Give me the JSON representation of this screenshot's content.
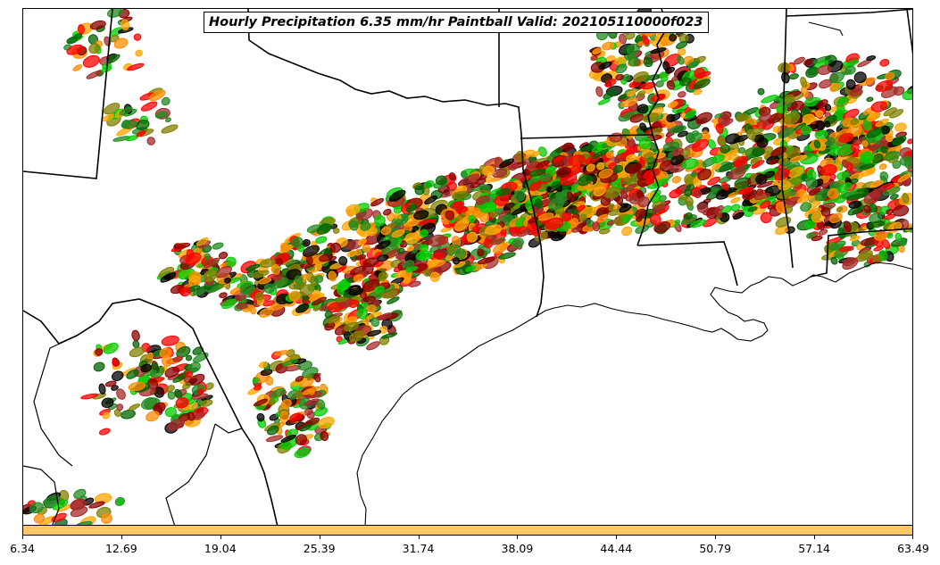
{
  "title": "Hourly Precipitation 6.35 mm/hr Paintball Valid: 202105110000f023",
  "colorbar": {
    "fill_color": "#ffc764",
    "ticks": [
      "6.34",
      "12.69",
      "19.04",
      "25.39",
      "31.74",
      "38.09",
      "44.44",
      "50.79",
      "57.14",
      "63.49"
    ]
  },
  "colors": {
    "member_colors": [
      "#ff0000",
      "#ff8c00",
      "#ffa500",
      "#00cc00",
      "#228b22",
      "#808000",
      "#8b0000",
      "#a52a2a",
      "#006400",
      "#000000"
    ],
    "boundary": "#000000",
    "background": "#ffffff"
  }
}
